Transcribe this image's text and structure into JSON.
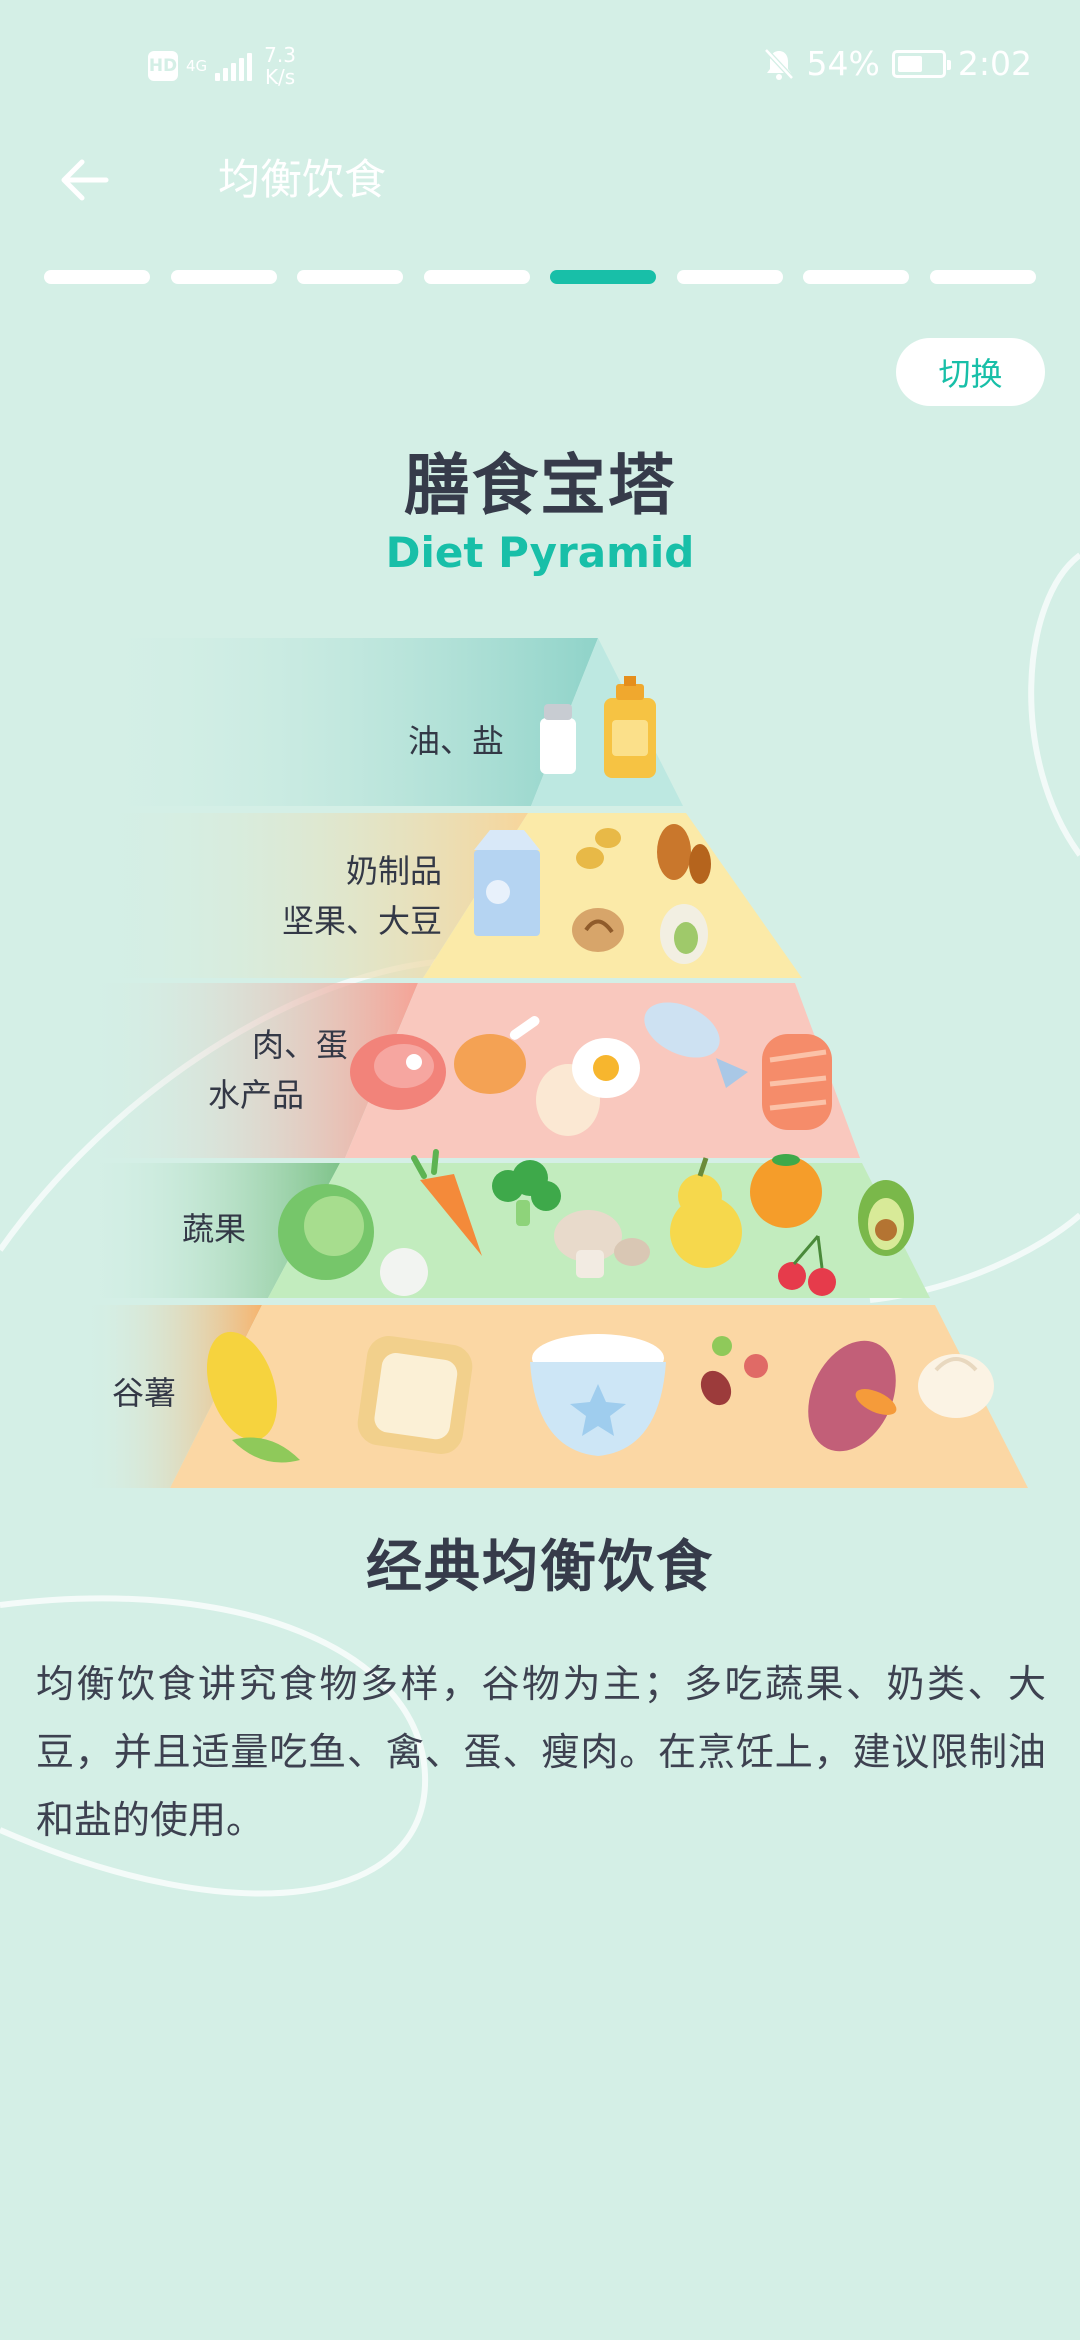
{
  "status_bar": {
    "hd": "HD",
    "network": "4G",
    "speed_value": "7.3",
    "speed_unit": "K/s",
    "battery": "54%",
    "time": "2:02"
  },
  "header": {
    "title": "均衡饮食"
  },
  "progress": {
    "total_steps": 8,
    "current_step": 5
  },
  "switch_label": "切换",
  "pyramid": {
    "title": "膳食宝塔",
    "subtitle": "Diet Pyramid",
    "tiers": [
      {
        "lines": [
          "油、盐"
        ],
        "icon": "oil-salt-icon"
      },
      {
        "lines": [
          "奶制品",
          "坚果、大豆"
        ],
        "icon": "dairy-nuts-icon"
      },
      {
        "lines": [
          "肉、蛋",
          "水产品"
        ],
        "icon": "meat-egg-fish-icon"
      },
      {
        "lines": [
          "蔬果"
        ],
        "icon": "vegetables-fruits-icon"
      },
      {
        "lines": [
          "谷薯"
        ],
        "icon": "grains-tubers-icon"
      }
    ],
    "colors": {
      "oil": "#bde8e1",
      "dairy": "#fbeaa8",
      "meat": "#f9c8be",
      "veg": "#c2ecbe",
      "grain": "#fbd7a4"
    }
  },
  "section": {
    "title": "经典均衡饮食",
    "description": "均衡饮食讲究食物多样，谷物为主；多吃蔬果、奶类、大豆，并且适量吃鱼、禽、蛋、瘦肉。在烹饪上，建议限制油和盐的使用。"
  }
}
